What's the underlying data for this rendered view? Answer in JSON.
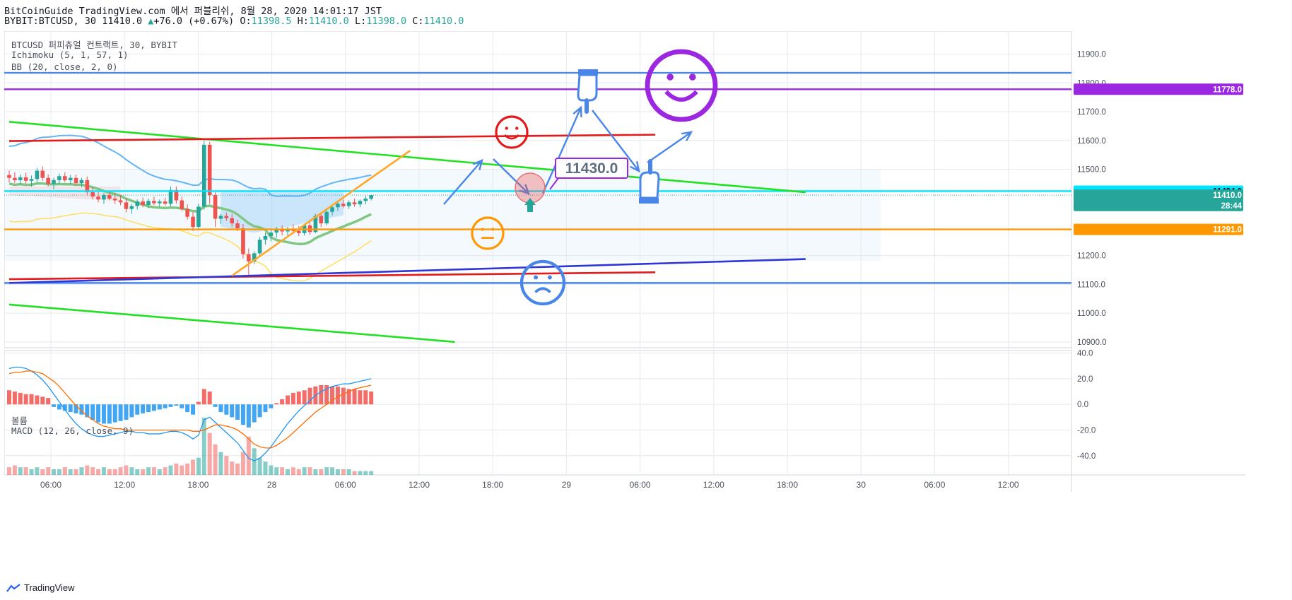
{
  "header": {
    "line1": "BitCoinGuide TradingView.com 에서 퍼블리쉬, 8월 28, 2020 14:01:17 JST",
    "symbol_tf": "BYBIT:BTCUSD, 30",
    "last": "11410.0",
    "change": "+76.0 (+0.67%)",
    "o_label": "O:",
    "o_val": "11398.5",
    "h_label": "H:",
    "h_val": "11410.0",
    "l_label": "L:",
    "l_val": "11398.0",
    "c_label": "C:",
    "c_val": "11410.0"
  },
  "legend": {
    "instrument": "BTCUSD 퍼피츄얼 컨트랙트, 30, BYBIT",
    "ichimoku": "Ichimoku (5, 1, 57, 1)",
    "bb": "BB (20, close, 2, 0)",
    "volume": "볼륨",
    "macd": "MACD (12, 26, close, 9)"
  },
  "footer": {
    "brand": "TradingView"
  },
  "colors": {
    "up": "#ef5350",
    "down": "#26a69a",
    "grid": "#e6e9ee",
    "support_blue": "#4a86e8",
    "resistance_red": "#e31b1b",
    "trend_green": "#22e022",
    "purple_level": "#9c27e0",
    "orange_level": "#ff9800",
    "cyan_level": "#00e5ff",
    "macd_line": "#2196f3",
    "signal_line": "#ff6d00"
  },
  "chart_data": {
    "type": "candlestick",
    "symbol": "BYBIT:BTCUSD",
    "timeframe": "30",
    "price_axis": {
      "ylim": [
        10880,
        11980
      ],
      "ticks": [
        "11900.0",
        "11800.0",
        "11700.0",
        "11600.0",
        "11500.0",
        "11200.0",
        "11100.0",
        "11000.0",
        "10900.0"
      ]
    },
    "time_axis": {
      "labels": [
        "06:00",
        "12:00",
        "18:00",
        "28",
        "06:00",
        "12:00",
        "18:00",
        "29",
        "06:00",
        "12:00",
        "18:00",
        "30",
        "06:00",
        "12:00"
      ]
    },
    "price_badges": [
      {
        "label": "11778.0",
        "value": 11778,
        "color": "#9c27e0"
      },
      {
        "label": "11424.0",
        "value": 11424,
        "color": "#00e5ff"
      },
      {
        "label": "11410.0",
        "value": 11410,
        "color": "#26a69a"
      },
      {
        "label": "28:44",
        "value": 11374,
        "color": "#26a69a"
      },
      {
        "label": "11291.0",
        "value": 11291,
        "color": "#ff9800"
      }
    ],
    "horizontal_levels": [
      {
        "value": 11835,
        "color": "#4a86e8"
      },
      {
        "value": 11778,
        "color": "#9c27e0"
      },
      {
        "value": 11424,
        "color": "#00e5ff"
      },
      {
        "value": 11291,
        "color": "#ff9800"
      },
      {
        "value": 11105,
        "color": "#4a86e8"
      }
    ],
    "trend_lines": [
      {
        "from": [
          0,
          11665
        ],
        "to": [
          143,
          11420
        ],
        "color": "#22e022"
      },
      {
        "from": [
          0,
          11030
        ],
        "to": [
          80,
          10900
        ],
        "color": "#22e022"
      },
      {
        "from": [
          0,
          11598
        ],
        "to": [
          116,
          11620
        ],
        "color": "#e31b1b"
      },
      {
        "from": [
          0,
          11118
        ],
        "to": [
          116,
          11142
        ],
        "color": "#e31b1b"
      },
      {
        "from": [
          0,
          11105
        ],
        "to": [
          143,
          11188
        ],
        "color": "#2d36d8"
      },
      {
        "from": [
          40,
          11130
        ],
        "to": [
          72,
          11565
        ],
        "color": "#ffa726"
      }
    ],
    "annotation": {
      "label": "11430.0",
      "value": 11430
    },
    "candles": [
      [
        11480,
        11495,
        11455,
        11470
      ],
      [
        11470,
        11490,
        11452,
        11462
      ],
      [
        11462,
        11482,
        11445,
        11472
      ],
      [
        11472,
        11488,
        11450,
        11460
      ],
      [
        11460,
        11478,
        11440,
        11466
      ],
      [
        11466,
        11505,
        11456,
        11495
      ],
      [
        11495,
        11510,
        11460,
        11470
      ],
      [
        11470,
        11482,
        11440,
        11450
      ],
      [
        11450,
        11470,
        11430,
        11462
      ],
      [
        11462,
        11485,
        11448,
        11476
      ],
      [
        11476,
        11490,
        11455,
        11462
      ],
      [
        11462,
        11480,
        11448,
        11470
      ],
      [
        11470,
        11482,
        11445,
        11452
      ],
      [
        11452,
        11470,
        11438,
        11462
      ],
      [
        11462,
        11475,
        11410,
        11420
      ],
      [
        11420,
        11438,
        11395,
        11405
      ],
      [
        11405,
        11420,
        11385,
        11395
      ],
      [
        11395,
        11418,
        11380,
        11410
      ],
      [
        11410,
        11420,
        11392,
        11398
      ],
      [
        11398,
        11418,
        11380,
        11392
      ],
      [
        11392,
        11410,
        11375,
        11385
      ],
      [
        11385,
        11398,
        11350,
        11362
      ],
      [
        11362,
        11380,
        11345,
        11372
      ],
      [
        11372,
        11395,
        11360,
        11388
      ],
      [
        11388,
        11402,
        11368,
        11376
      ],
      [
        11376,
        11398,
        11365,
        11390
      ],
      [
        11390,
        11405,
        11375,
        11382
      ],
      [
        11382,
        11395,
        11370,
        11388
      ],
      [
        11388,
        11402,
        11374,
        11380
      ],
      [
        11380,
        11440,
        11370,
        11428
      ],
      [
        11428,
        11440,
        11380,
        11392
      ],
      [
        11392,
        11405,
        11355,
        11362
      ],
      [
        11362,
        11378,
        11325,
        11335
      ],
      [
        11335,
        11350,
        11285,
        11300
      ],
      [
        11300,
        11380,
        11290,
        11370
      ],
      [
        11370,
        11600,
        11360,
        11585
      ],
      [
        11585,
        11595,
        11380,
        11410
      ],
      [
        11410,
        11420,
        11300,
        11328
      ],
      [
        11328,
        11345,
        11310,
        11338
      ],
      [
        11338,
        11350,
        11320,
        11330
      ],
      [
        11330,
        11345,
        11300,
        11312
      ],
      [
        11312,
        11325,
        11285,
        11295
      ],
      [
        11295,
        11310,
        11190,
        11205
      ],
      [
        11205,
        11225,
        11130,
        11180
      ],
      [
        11180,
        11215,
        11170,
        11208
      ],
      [
        11208,
        11265,
        11200,
        11255
      ],
      [
        11255,
        11280,
        11238,
        11268
      ],
      [
        11268,
        11290,
        11250,
        11280
      ],
      [
        11280,
        11300,
        11262,
        11290
      ],
      [
        11290,
        11305,
        11270,
        11284
      ],
      [
        11284,
        11300,
        11268,
        11292
      ],
      [
        11292,
        11308,
        11275,
        11286
      ],
      [
        11286,
        11302,
        11268,
        11278
      ],
      [
        11278,
        11310,
        11270,
        11305
      ],
      [
        11305,
        11325,
        11272,
        11282
      ],
      [
        11282,
        11345,
        11278,
        11338
      ],
      [
        11338,
        11350,
        11300,
        11312
      ],
      [
        11312,
        11360,
        11305,
        11352
      ],
      [
        11352,
        11375,
        11340,
        11368
      ],
      [
        11368,
        11390,
        11355,
        11380
      ],
      [
        11380,
        11395,
        11365,
        11372
      ],
      [
        11372,
        11392,
        11362,
        11385
      ],
      [
        11385,
        11398,
        11370,
        11378
      ],
      [
        11378,
        11395,
        11368,
        11390
      ],
      [
        11390,
        11408,
        11378,
        11398
      ],
      [
        11398,
        11410,
        11392,
        11410
      ]
    ],
    "macd": {
      "ylim": [
        -55,
        42
      ],
      "ticks": [
        "40.0",
        "20.0",
        "0.0",
        "-20.0",
        "-40.0"
      ],
      "histogram": [
        11,
        10,
        9,
        8,
        8,
        7,
        6,
        5,
        -2,
        -4,
        -5,
        -6,
        -7,
        -8,
        -10,
        -12,
        -14,
        -15,
        -15,
        -14,
        -13,
        -12,
        -10,
        -8,
        -7,
        -6,
        -5,
        -4,
        -3,
        -2,
        -1,
        -3,
        -6,
        -8,
        2,
        12,
        10,
        -2,
        -6,
        -8,
        -10,
        -12,
        -16,
        -18,
        -14,
        -10,
        -6,
        -3,
        1,
        4,
        7,
        9,
        10,
        11,
        13,
        14,
        15,
        15,
        14,
        14,
        13,
        12,
        12,
        11,
        11,
        10
      ],
      "macd_line": [
        28,
        29,
        29,
        28,
        26,
        23,
        19,
        14,
        8,
        2,
        -4,
        -10,
        -15,
        -19,
        -22,
        -24,
        -25,
        -25,
        -24,
        -23,
        -22,
        -21,
        -21,
        -22,
        -22,
        -23,
        -23,
        -23,
        -22,
        -21,
        -21,
        -22,
        -24,
        -27,
        -24,
        -12,
        -10,
        -14,
        -18,
        -22,
        -26,
        -30,
        -36,
        -42,
        -44,
        -42,
        -38,
        -33,
        -27,
        -21,
        -15,
        -10,
        -5,
        -1,
        3,
        7,
        10,
        12,
        14,
        15,
        16,
        16,
        17,
        18,
        19,
        20
      ],
      "signal_line": [
        24,
        25,
        25,
        26,
        26,
        25,
        24,
        21,
        18,
        14,
        9,
        4,
        -1,
        -5,
        -9,
        -12,
        -15,
        -17,
        -18,
        -19,
        -19,
        -20,
        -20,
        -20,
        -20,
        -20,
        -20,
        -20,
        -20,
        -20,
        -20,
        -20,
        -20,
        -21,
        -21,
        -20,
        -18,
        -16,
        -16,
        -17,
        -18,
        -20,
        -23,
        -27,
        -31,
        -33,
        -34,
        -34,
        -32,
        -29,
        -26,
        -22,
        -18,
        -14,
        -10,
        -6,
        -3,
        0,
        3,
        6,
        8,
        10,
        12,
        13,
        14,
        15
      ]
    },
    "volume": [
      4,
      5,
      4,
      4,
      3,
      4,
      3,
      4,
      3,
      3,
      4,
      3,
      3,
      4,
      5,
      4,
      3,
      4,
      3,
      3,
      4,
      5,
      4,
      3,
      3,
      4,
      4,
      3,
      4,
      5,
      6,
      5,
      6,
      8,
      9,
      30,
      22,
      16,
      12,
      10,
      7,
      6,
      12,
      20,
      14,
      9,
      7,
      5,
      4,
      4,
      3,
      4,
      3,
      4,
      4,
      3,
      3,
      4,
      4,
      3,
      3,
      3,
      2,
      2,
      2,
      2
    ]
  }
}
